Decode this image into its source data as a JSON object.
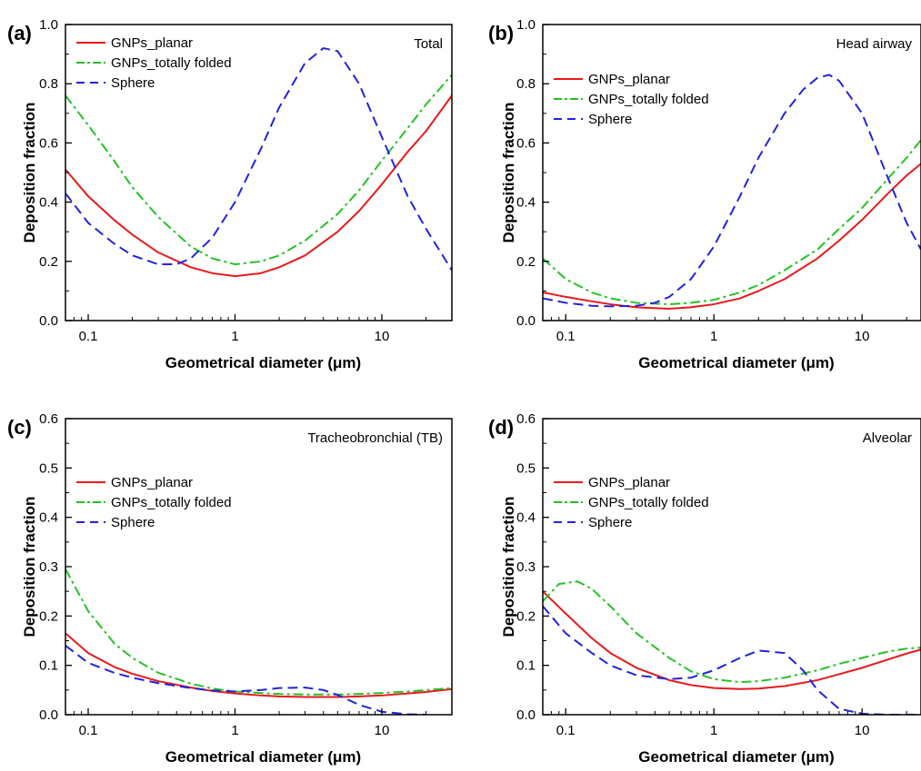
{
  "figure": {
    "panels": [
      "(a)",
      "(b)",
      "(c)",
      "(d)"
    ]
  },
  "chart_data": [
    {
      "panel": "(a)",
      "type": "line",
      "annotation": "Total",
      "xlabel": "Geometrical diameter (μm)",
      "ylabel": "Deposition fraction",
      "xscale": "log",
      "xlim": [
        0.07,
        30
      ],
      "ylim": [
        0,
        1.0
      ],
      "xticks": [
        "0.1",
        "1",
        "10"
      ],
      "yticks": [
        "0.0",
        "0.2",
        "0.4",
        "0.6",
        "0.8",
        "1.0"
      ],
      "legend_position": "top-left",
      "series": [
        {
          "name": "GNPs_planar",
          "color": "#e8191c",
          "dash": "solid",
          "x": [
            0.07,
            0.1,
            0.15,
            0.2,
            0.3,
            0.5,
            0.7,
            1,
            1.5,
            2,
            3,
            5,
            7,
            10,
            15,
            20,
            30
          ],
          "y": [
            0.51,
            0.42,
            0.34,
            0.29,
            0.23,
            0.18,
            0.16,
            0.15,
            0.16,
            0.18,
            0.22,
            0.3,
            0.37,
            0.46,
            0.57,
            0.64,
            0.76
          ]
        },
        {
          "name": "GNPs_totally folded",
          "color": "#22c322",
          "dash": "dashdot",
          "x": [
            0.07,
            0.1,
            0.15,
            0.2,
            0.3,
            0.5,
            0.7,
            1,
            1.5,
            2,
            3,
            5,
            7,
            10,
            15,
            20,
            30
          ],
          "y": [
            0.76,
            0.66,
            0.54,
            0.45,
            0.35,
            0.25,
            0.21,
            0.19,
            0.2,
            0.22,
            0.27,
            0.36,
            0.44,
            0.54,
            0.65,
            0.73,
            0.83
          ]
        },
        {
          "name": "Sphere",
          "color": "#2222dd",
          "dash": "dashed",
          "x": [
            0.07,
            0.1,
            0.15,
            0.2,
            0.3,
            0.4,
            0.5,
            0.7,
            1,
            1.5,
            2,
            3,
            4,
            5,
            7,
            10,
            15,
            20,
            30
          ],
          "y": [
            0.43,
            0.33,
            0.26,
            0.22,
            0.19,
            0.19,
            0.21,
            0.28,
            0.4,
            0.58,
            0.72,
            0.87,
            0.92,
            0.91,
            0.8,
            0.62,
            0.42,
            0.31,
            0.17
          ]
        }
      ]
    },
    {
      "panel": "(b)",
      "type": "line",
      "annotation": "Head airway",
      "xlabel": "Geometrical diameter (μm)",
      "ylabel": "Deposition fraction",
      "xscale": "log",
      "xlim": [
        0.07,
        25
      ],
      "ylim": [
        0,
        1.0
      ],
      "xticks": [
        "0.1",
        "1",
        "10"
      ],
      "yticks": [
        "0.0",
        "0.2",
        "0.4",
        "0.6",
        "0.8",
        "1.0"
      ],
      "legend_position": "top-left",
      "series": [
        {
          "name": "GNPs_planar",
          "color": "#e8191c",
          "dash": "solid",
          "x": [
            0.07,
            0.1,
            0.15,
            0.2,
            0.3,
            0.5,
            0.7,
            1,
            1.5,
            2,
            3,
            5,
            7,
            10,
            15,
            20,
            25
          ],
          "y": [
            0.095,
            0.08,
            0.065,
            0.055,
            0.045,
            0.04,
            0.045,
            0.055,
            0.075,
            0.1,
            0.14,
            0.21,
            0.27,
            0.34,
            0.43,
            0.49,
            0.53
          ]
        },
        {
          "name": "GNPs_totally folded",
          "color": "#22c322",
          "dash": "dashdot",
          "x": [
            0.07,
            0.1,
            0.15,
            0.2,
            0.3,
            0.5,
            0.7,
            1,
            1.5,
            2,
            3,
            5,
            7,
            10,
            15,
            20,
            25
          ],
          "y": [
            0.21,
            0.14,
            0.095,
            0.075,
            0.06,
            0.055,
            0.06,
            0.07,
            0.095,
            0.12,
            0.17,
            0.24,
            0.31,
            0.38,
            0.48,
            0.55,
            0.61
          ]
        },
        {
          "name": "Sphere",
          "color": "#2222dd",
          "dash": "dashed",
          "x": [
            0.07,
            0.1,
            0.15,
            0.2,
            0.3,
            0.4,
            0.5,
            0.7,
            1,
            1.5,
            2,
            3,
            4,
            5,
            6,
            7,
            10,
            15,
            20,
            25
          ],
          "y": [
            0.075,
            0.06,
            0.05,
            0.048,
            0.05,
            0.06,
            0.08,
            0.14,
            0.25,
            0.42,
            0.55,
            0.7,
            0.78,
            0.82,
            0.83,
            0.81,
            0.7,
            0.48,
            0.33,
            0.24
          ]
        }
      ]
    },
    {
      "panel": "(c)",
      "type": "line",
      "annotation": "Tracheobronchial (TB)",
      "xlabel": "Geometrical diameter (μm)",
      "ylabel": "Deposition fraction",
      "xscale": "log",
      "xlim": [
        0.07,
        30
      ],
      "ylim": [
        0,
        0.6
      ],
      "xticks": [
        "0.1",
        "1",
        "10"
      ],
      "yticks": [
        "0.0",
        "0.1",
        "0.2",
        "0.3",
        "0.4",
        "0.5",
        "0.6"
      ],
      "legend_position": "middle-left",
      "series": [
        {
          "name": "GNPs_planar",
          "color": "#e8191c",
          "dash": "solid",
          "x": [
            0.07,
            0.1,
            0.15,
            0.2,
            0.3,
            0.5,
            0.7,
            1,
            1.5,
            2,
            3,
            5,
            7,
            10,
            15,
            20,
            30
          ],
          "y": [
            0.165,
            0.125,
            0.097,
            0.083,
            0.068,
            0.055,
            0.048,
            0.043,
            0.039,
            0.037,
            0.036,
            0.036,
            0.037,
            0.039,
            0.043,
            0.046,
            0.052
          ]
        },
        {
          "name": "GNPs_totally folded",
          "color": "#22c322",
          "dash": "dashdot",
          "x": [
            0.07,
            0.1,
            0.15,
            0.2,
            0.3,
            0.5,
            0.7,
            1,
            1.5,
            2,
            3,
            5,
            7,
            10,
            15,
            20,
            30
          ],
          "y": [
            0.295,
            0.21,
            0.145,
            0.115,
            0.085,
            0.063,
            0.053,
            0.047,
            0.044,
            0.042,
            0.041,
            0.041,
            0.042,
            0.044,
            0.047,
            0.05,
            0.054
          ]
        },
        {
          "name": "Sphere",
          "color": "#2222dd",
          "dash": "dashed",
          "x": [
            0.07,
            0.1,
            0.15,
            0.2,
            0.3,
            0.5,
            0.7,
            1,
            1.5,
            2,
            3,
            4,
            5,
            7,
            10,
            15,
            20
          ],
          "y": [
            0.14,
            0.105,
            0.085,
            0.075,
            0.064,
            0.054,
            0.049,
            0.047,
            0.05,
            0.054,
            0.055,
            0.05,
            0.04,
            0.02,
            0.006,
            0.001,
            0.0
          ]
        }
      ]
    },
    {
      "panel": "(d)",
      "type": "line",
      "annotation": "Alveolar",
      "xlabel": "Geometrical diameter (μm)",
      "ylabel": "Deposition fraction",
      "xscale": "log",
      "xlim": [
        0.07,
        25
      ],
      "ylim": [
        0,
        0.6
      ],
      "xticks": [
        "0.1",
        "1",
        "10"
      ],
      "yticks": [
        "0.0",
        "0.1",
        "0.2",
        "0.3",
        "0.4",
        "0.5",
        "0.6"
      ],
      "legend_position": "middle-left",
      "series": [
        {
          "name": "GNPs_planar",
          "color": "#e8191c",
          "dash": "solid",
          "x": [
            0.07,
            0.1,
            0.15,
            0.2,
            0.3,
            0.5,
            0.7,
            1,
            1.5,
            2,
            3,
            5,
            7,
            10,
            15,
            20,
            25
          ],
          "y": [
            0.25,
            0.205,
            0.155,
            0.125,
            0.095,
            0.07,
            0.06,
            0.054,
            0.052,
            0.053,
            0.058,
            0.07,
            0.082,
            0.095,
            0.112,
            0.124,
            0.132
          ]
        },
        {
          "name": "GNPs_totally folded",
          "color": "#22c322",
          "dash": "dashdot",
          "x": [
            0.07,
            0.09,
            0.12,
            0.15,
            0.2,
            0.3,
            0.5,
            0.7,
            1,
            1.5,
            2,
            3,
            5,
            7,
            10,
            15,
            20,
            25
          ],
          "y": [
            0.23,
            0.265,
            0.27,
            0.255,
            0.22,
            0.165,
            0.115,
            0.088,
            0.072,
            0.066,
            0.068,
            0.075,
            0.09,
            0.103,
            0.115,
            0.128,
            0.134,
            0.136
          ]
        },
        {
          "name": "Sphere",
          "color": "#2222dd",
          "dash": "dashed",
          "x": [
            0.07,
            0.1,
            0.15,
            0.2,
            0.3,
            0.5,
            0.7,
            1,
            1.5,
            2,
            3,
            4,
            5,
            7,
            10,
            15,
            20,
            25
          ],
          "y": [
            0.22,
            0.165,
            0.125,
            0.1,
            0.08,
            0.072,
            0.075,
            0.09,
            0.115,
            0.13,
            0.125,
            0.09,
            0.05,
            0.012,
            0.002,
            0.0,
            0.0,
            0.0
          ]
        }
      ]
    }
  ]
}
